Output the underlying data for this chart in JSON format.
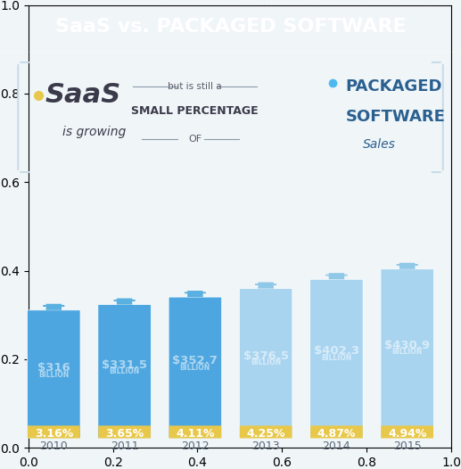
{
  "title": "SaaS vs. PACKAGED SOFTWARE",
  "years": [
    "2010",
    "2011",
    "2012",
    "2013",
    "2014",
    "2015"
  ],
  "values": [
    "$316\nBILLION",
    "$331.5\nBILLION",
    "$352.7\nBILLION",
    "$376.5\nBILLION",
    "$402.3\nBILLION",
    "$430.9\nBILLION"
  ],
  "percentages": [
    "3.16%",
    "3.65%",
    "4.11%",
    "4.25%",
    "4.87%",
    "4.94%"
  ],
  "bar_heights": [
    316,
    331.5,
    352.7,
    376.5,
    402.3,
    430.9
  ],
  "dark_blue_cols": [
    0,
    1,
    2
  ],
  "light_blue_cols": [
    3,
    4,
    5
  ],
  "dark_bar_color": "#4da6e0",
  "light_bar_color": "#a8d4f0",
  "gold_color": "#e8c84a",
  "bg_color": "#f0f5f8",
  "title_bg_color": "#4db8f0",
  "title_text_color": "#ffffff",
  "text_color_dark": "#4a90c4",
  "text_color_light": "#b8d8ef",
  "header_bg": "#5bc5f5",
  "saas_color": "#3a3a4a",
  "packaged_color": "#2a6090"
}
